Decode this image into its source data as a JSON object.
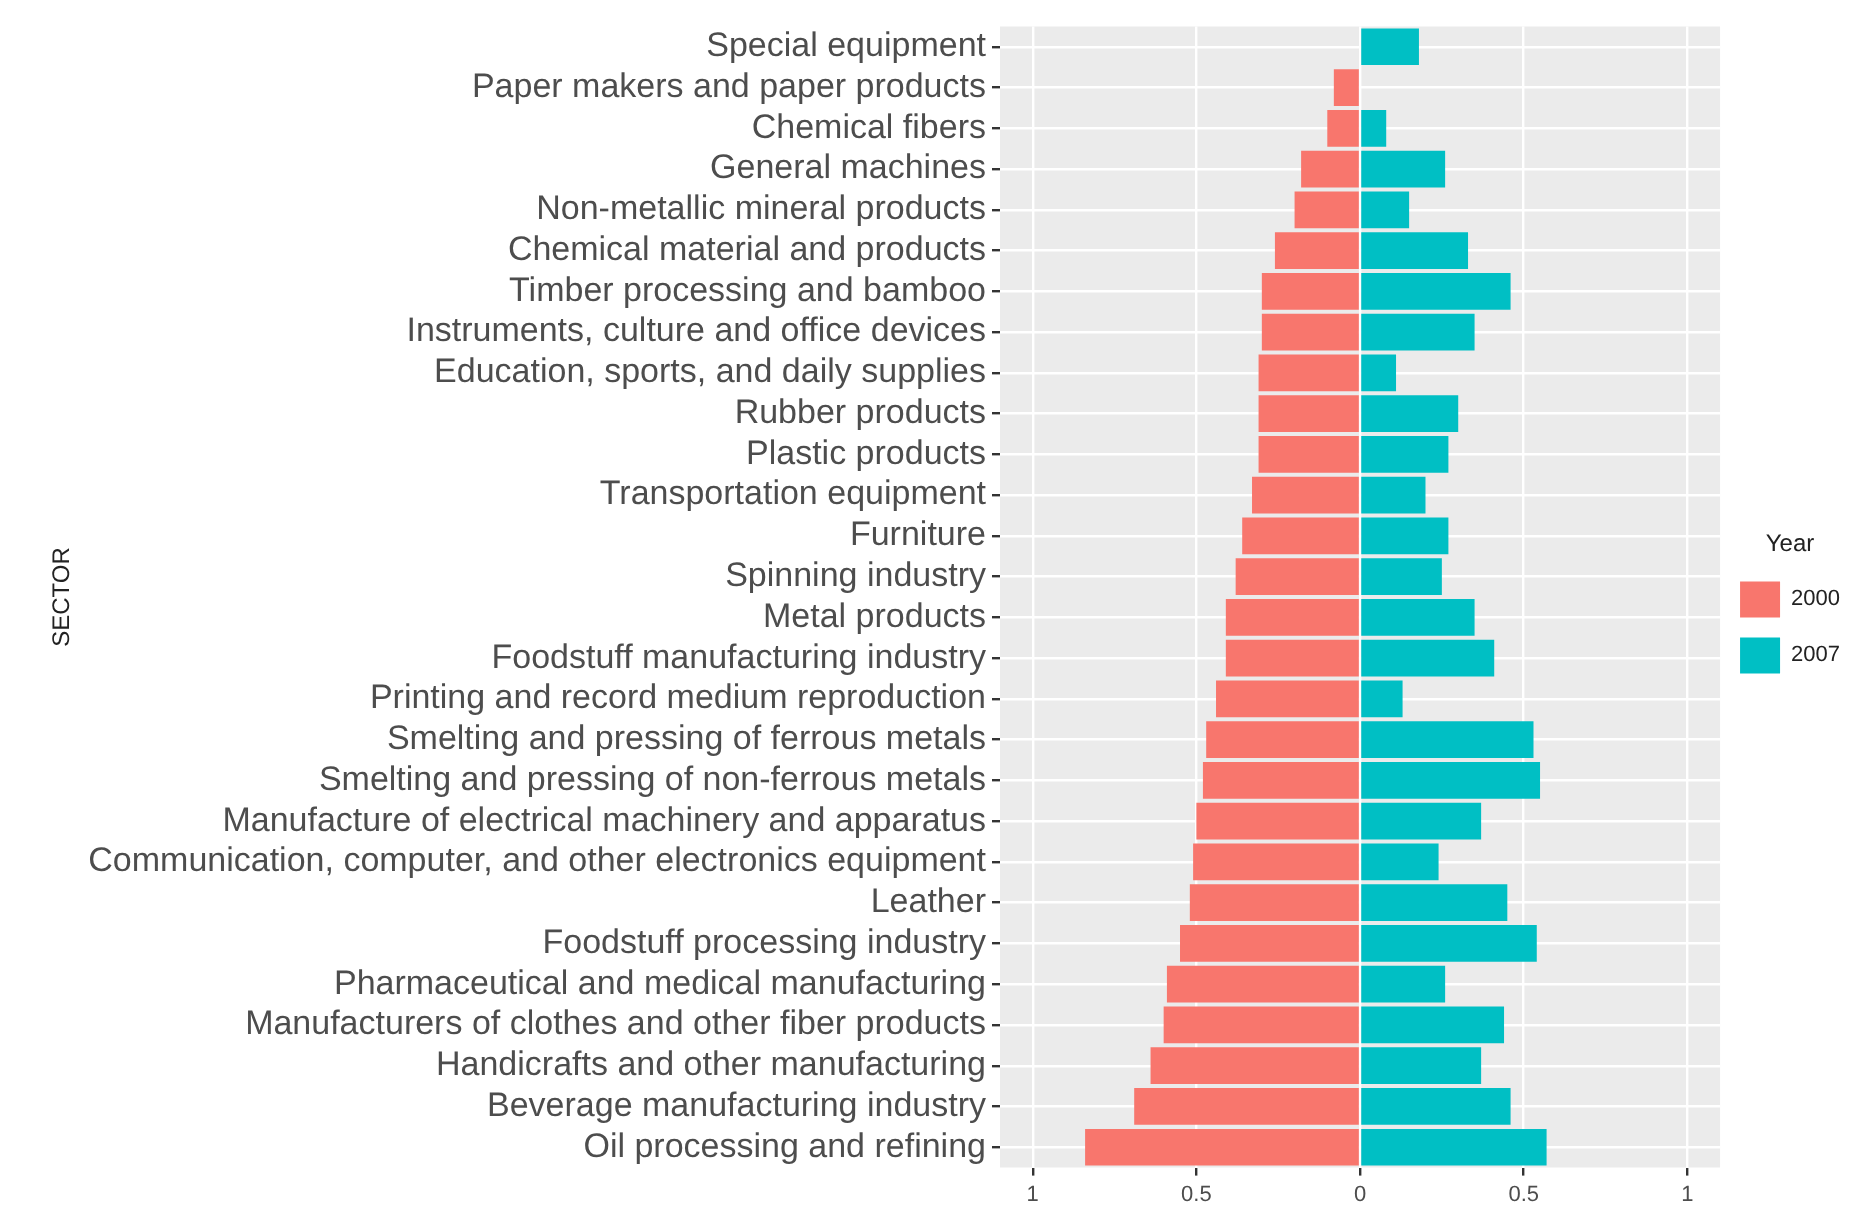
{
  "chart_data": {
    "type": "bar",
    "orientation": "horizontal",
    "stacked": true,
    "ylabel": "SECTOR",
    "legend_title": "Year",
    "legend": "right",
    "grid": true,
    "categories": [
      "Special equipment",
      "Paper makers and paper products",
      "Chemical fibers",
      "General machines",
      "Non-metallic mineral products",
      "Chemical material and products",
      "Timber processing and bamboo",
      "Instruments, culture and office devices",
      "Education, sports, and daily supplies",
      "Rubber products",
      "Plastic products",
      "Transportation equipment",
      "Furniture",
      "Spinning industry",
      "Metal products",
      "Foodstuff manufacturing industry",
      "Printing and record medium reproduction",
      "Smelting and pressing of ferrous metals",
      "Smelting and pressing of non-ferrous metals",
      "Manufacture of electrical machinery and apparatus",
      "Communication, computer, and other electronics equipment",
      "Leather",
      "Foodstuff processing industry",
      "Pharmaceutical and medical manufacturing",
      "Manufacturers of clothes and other fiber products",
      "Handicrafts and other manufacturing",
      "Beverage manufacturing industry",
      "Oil processing and refining"
    ],
    "series": [
      {
        "name": "2000",
        "color": "#f8766d",
        "values": [
          null,
          -0.08,
          -0.1,
          -0.18,
          -0.2,
          -0.26,
          -0.3,
          -0.3,
          -0.31,
          -0.31,
          -0.31,
          -0.33,
          -0.36,
          -0.38,
          -0.41,
          -0.41,
          -0.44,
          -0.47,
          -0.48,
          -0.5,
          -0.51,
          -0.52,
          -0.55,
          -0.59,
          -0.6,
          -0.64,
          -0.69,
          -0.84
        ]
      },
      {
        "name": "2007",
        "color": "#00bfc4",
        "values": [
          0.18,
          null,
          0.08,
          0.26,
          0.15,
          0.33,
          0.46,
          0.35,
          0.11,
          0.3,
          0.27,
          0.2,
          0.27,
          0.25,
          0.35,
          0.41,
          0.13,
          0.53,
          0.55,
          0.37,
          0.24,
          0.45,
          0.54,
          0.26,
          0.44,
          0.37,
          0.46,
          0.57
        ]
      }
    ],
    "xlim": [
      -1.1,
      1.1
    ],
    "xticks": [
      {
        "value": -1,
        "label": "1"
      },
      {
        "value": -0.5,
        "label": "0.5"
      },
      0,
      {
        "value": 0.5,
        "label": "0.5"
      },
      {
        "value": 1,
        "label": "1"
      }
    ]
  }
}
